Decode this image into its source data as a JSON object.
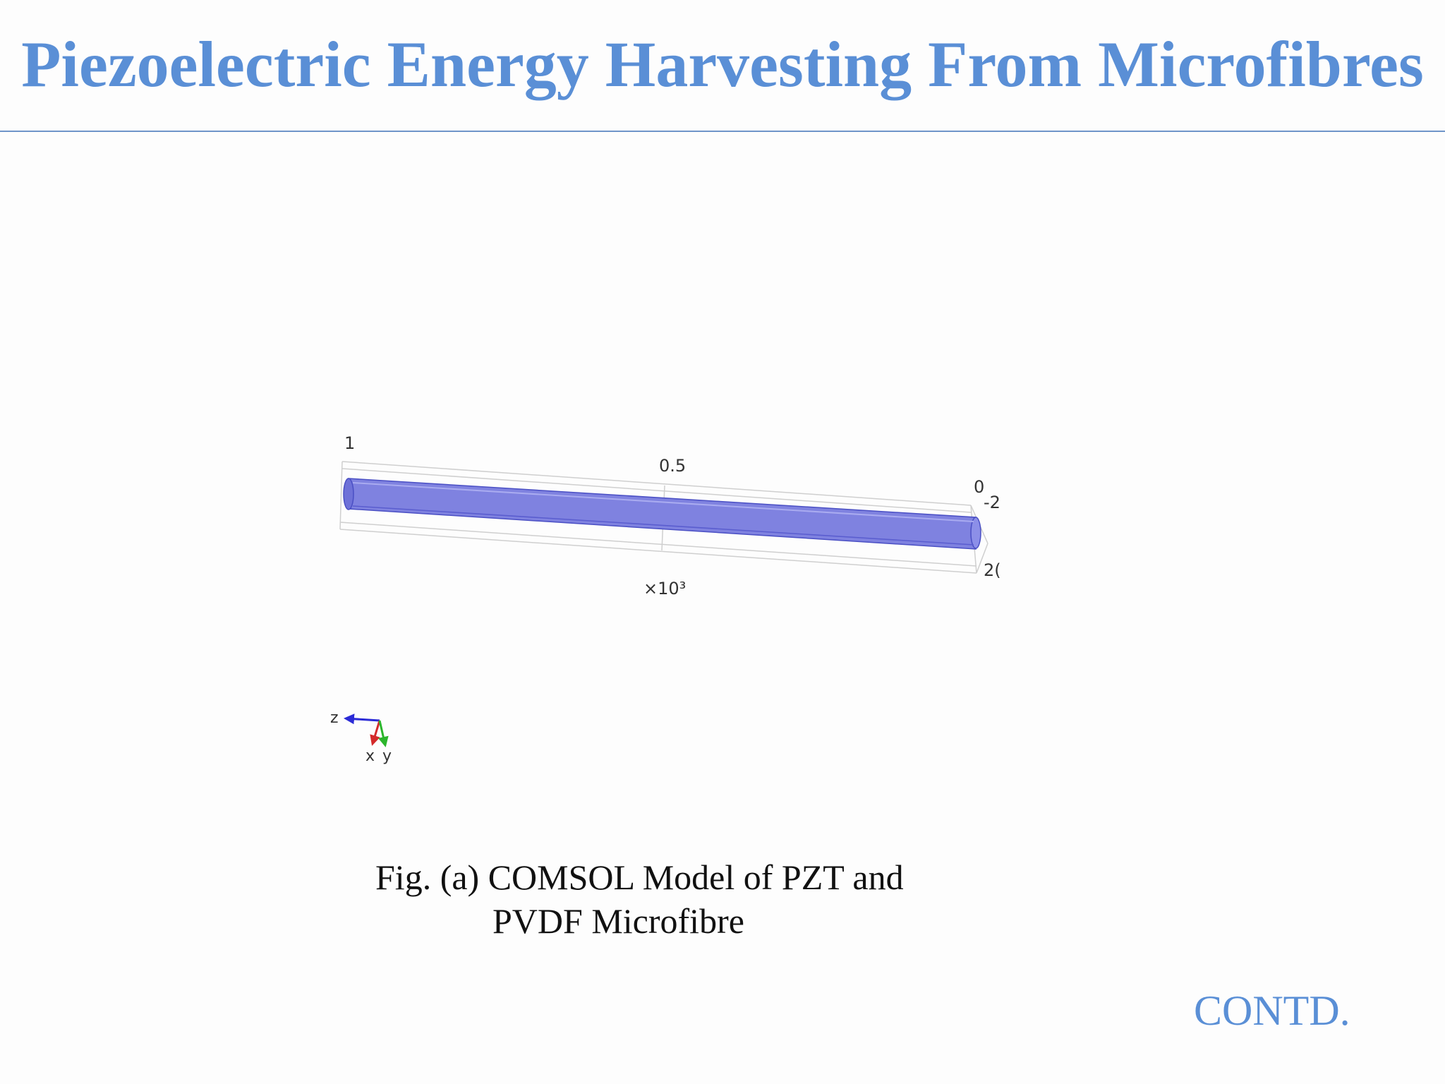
{
  "slide": {
    "title": "Piezoelectric Energy Harvesting From Microfibres",
    "continued_label": "CONTD.",
    "title_color": "#5a8fd6"
  },
  "figure": {
    "caption_line1": "Fig. (a) COMSOL Model of PZT and",
    "caption_line2": "PVDF  Microfibre",
    "model": {
      "fibre_color": "#7f82e0",
      "box_color": "#c8c8c8",
      "axis_tick_labels": [
        "1",
        "0.5",
        "0"
      ],
      "side_tick_labels": [
        "-2",
        "2("
      ],
      "scale_multiplier": "×10³"
    },
    "triad": {
      "axes": [
        {
          "label": "z",
          "color": "#2b2bd6"
        },
        {
          "label": "x",
          "color": "#d42a2a"
        },
        {
          "label": "y",
          "color": "#2bb52b"
        }
      ]
    }
  }
}
